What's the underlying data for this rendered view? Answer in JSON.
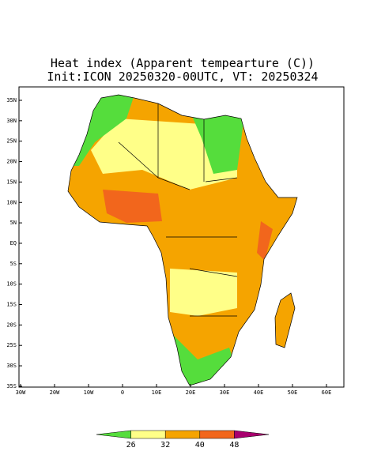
{
  "title": "Heat index (Apparent tempearture (C))",
  "subtitle": "Init:ICON 20250320-00UTC, VT: 20250324",
  "map": {
    "lat_ticks": [
      {
        "value": 35,
        "label": "35N"
      },
      {
        "value": 30,
        "label": "30N"
      },
      {
        "value": 25,
        "label": "25N"
      },
      {
        "value": 20,
        "label": "20N"
      },
      {
        "value": 15,
        "label": "15N"
      },
      {
        "value": 10,
        "label": "10N"
      },
      {
        "value": 5,
        "label": "5N"
      },
      {
        "value": 0,
        "label": "EQ"
      },
      {
        "value": -5,
        "label": "5S"
      },
      {
        "value": -10,
        "label": "10S"
      },
      {
        "value": -15,
        "label": "15S"
      },
      {
        "value": -20,
        "label": "20S"
      },
      {
        "value": -25,
        "label": "25S"
      },
      {
        "value": -30,
        "label": "30S"
      },
      {
        "value": -35,
        "label": "35S"
      }
    ],
    "lon_ticks": [
      {
        "value": -30,
        "label": "30W"
      },
      {
        "value": -20,
        "label": "20W"
      },
      {
        "value": -10,
        "label": "10W"
      },
      {
        "value": 0,
        "label": "0"
      },
      {
        "value": 10,
        "label": "10E"
      },
      {
        "value": 20,
        "label": "20E"
      },
      {
        "value": 30,
        "label": "30E"
      },
      {
        "value": 40,
        "label": "40E"
      },
      {
        "value": 50,
        "label": "50E"
      },
      {
        "value": 60,
        "label": "60E"
      }
    ]
  },
  "colorbar": {
    "ticks": [
      26,
      32,
      40,
      48
    ],
    "colors": [
      "#55dd3c",
      "#ffff88",
      "#f5a400",
      "#f2661c",
      "#a8006e"
    ]
  }
}
